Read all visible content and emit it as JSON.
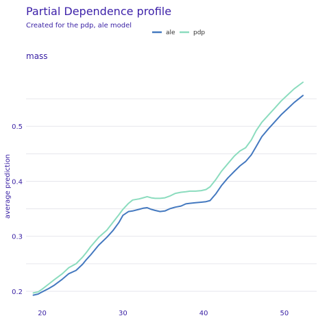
{
  "chart_data": {
    "type": "line",
    "title": "Partial Dependence profile",
    "subtitle": "Created for the pdp, ale model",
    "panel_label": "mass",
    "xlabel": "",
    "ylabel": "average prediction",
    "xlim": [
      18,
      54
    ],
    "ylim": [
      0.185,
      0.6
    ],
    "xticks": [
      20,
      30,
      40,
      50
    ],
    "yticks": [
      0.2,
      0.3,
      0.4,
      0.5
    ],
    "grid": true,
    "legend_position": "top",
    "colors": {
      "title": "#3b1fa8",
      "text": "#371ea3",
      "grid": "#e6e6ec"
    },
    "series": [
      {
        "name": "ale",
        "color": "#4378bf",
        "x": [
          18.9,
          19.5,
          20.0,
          20.8,
          21.5,
          22.5,
          23.3,
          24.2,
          25.0,
          25.5,
          26.0,
          27.0,
          28.0,
          28.8,
          29.5,
          30.0,
          30.7,
          31.2,
          32.0,
          32.5,
          33.0,
          33.5,
          34.0,
          34.6,
          35.2,
          35.8,
          36.5,
          37.2,
          37.8,
          38.3,
          39.0,
          39.7,
          40.3,
          40.8,
          41.5,
          42.2,
          43.0,
          43.8,
          44.5,
          45.2,
          45.9,
          46.5,
          47.2,
          48.0,
          48.8,
          49.6,
          50.4,
          51.2,
          52.3
        ],
        "y": [
          0.193,
          0.195,
          0.199,
          0.205,
          0.211,
          0.222,
          0.232,
          0.238,
          0.249,
          0.258,
          0.266,
          0.284,
          0.298,
          0.311,
          0.325,
          0.338,
          0.345,
          0.346,
          0.349,
          0.351,
          0.352,
          0.349,
          0.347,
          0.345,
          0.346,
          0.35,
          0.353,
          0.355,
          0.359,
          0.36,
          0.361,
          0.362,
          0.363,
          0.365,
          0.377,
          0.392,
          0.406,
          0.418,
          0.428,
          0.436,
          0.448,
          0.463,
          0.481,
          0.495,
          0.508,
          0.521,
          0.532,
          0.543,
          0.556
        ]
      },
      {
        "name": "pdp",
        "color": "#8bdcbe",
        "x": [
          18.9,
          19.5,
          20.0,
          20.8,
          21.5,
          22.5,
          23.3,
          24.2,
          25.0,
          25.5,
          26.0,
          27.0,
          28.0,
          28.8,
          29.5,
          30.0,
          30.7,
          31.2,
          32.0,
          32.5,
          33.0,
          33.5,
          34.0,
          34.6,
          35.2,
          35.8,
          36.5,
          37.2,
          37.8,
          38.3,
          39.0,
          39.7,
          40.3,
          40.8,
          41.5,
          42.2,
          43.0,
          43.8,
          44.5,
          45.2,
          45.9,
          46.5,
          47.2,
          48.0,
          48.8,
          49.6,
          50.4,
          51.2,
          52.3
        ],
        "y": [
          0.197,
          0.199,
          0.204,
          0.213,
          0.221,
          0.232,
          0.243,
          0.25,
          0.262,
          0.271,
          0.281,
          0.298,
          0.311,
          0.326,
          0.339,
          0.349,
          0.36,
          0.366,
          0.368,
          0.37,
          0.372,
          0.37,
          0.369,
          0.369,
          0.37,
          0.373,
          0.378,
          0.38,
          0.381,
          0.382,
          0.382,
          0.383,
          0.385,
          0.39,
          0.403,
          0.418,
          0.432,
          0.446,
          0.455,
          0.461,
          0.475,
          0.492,
          0.507,
          0.52,
          0.533,
          0.546,
          0.557,
          0.568,
          0.58
        ]
      }
    ]
  }
}
